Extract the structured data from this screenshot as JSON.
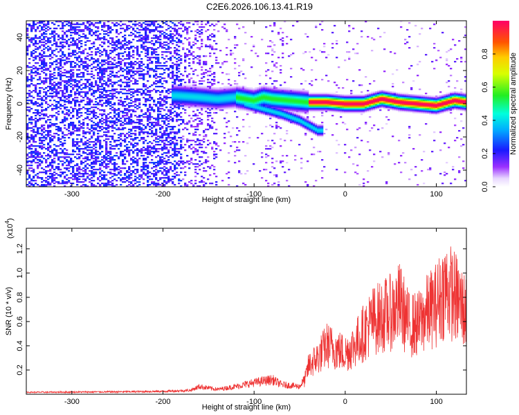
{
  "title": "C2E6.2026.106.13.41.R19",
  "chart_data": [
    {
      "type": "heatmap",
      "xlabel": "Height of straight line (km)",
      "ylabel": "Frequency (Hz)",
      "xlim": [
        -350,
        133
      ],
      "ylim": [
        -50,
        50
      ],
      "xticks": [
        -300,
        -200,
        -100,
        0,
        100
      ],
      "yticks": [
        -40,
        -20,
        0,
        20,
        40
      ],
      "colorbar": {
        "label": "Normalized spectral amplitude",
        "range": [
          0,
          1
        ],
        "ticks": [
          "0.0",
          "0.2",
          "0.4",
          "0.6",
          "0.8"
        ],
        "tick_values": [
          0.0,
          0.2,
          0.4,
          0.6,
          0.8
        ]
      },
      "features": {
        "noise_region_x": [
          -350,
          -180
        ],
        "mid_noise_x": [
          -180,
          -140
        ],
        "ridge_center": [
          [
            -185,
            5
          ],
          [
            -160,
            4
          ],
          [
            -140,
            3
          ],
          [
            -120,
            4
          ],
          [
            -110,
            3
          ],
          [
            -100,
            2
          ],
          [
            -90,
            4
          ],
          [
            -80,
            3
          ],
          [
            -60,
            2
          ],
          [
            -40,
            1
          ],
          [
            -20,
            1
          ],
          [
            0,
            0
          ],
          [
            20,
            0
          ],
          [
            40,
            3
          ],
          [
            60,
            1
          ],
          [
            80,
            0
          ],
          [
            100,
            -1
          ],
          [
            120,
            2
          ],
          [
            133,
            1
          ]
        ],
        "branch": [
          [
            -110,
            0
          ],
          [
            -90,
            -3
          ],
          [
            -70,
            -6
          ],
          [
            -50,
            -10
          ],
          [
            -30,
            -16
          ]
        ]
      }
    },
    {
      "type": "line",
      "xlabel": "Height of straight line (km)",
      "ylabel": "SNR (10 * v/v)",
      "y_multiplier": "(x10",
      "y_multiplier_exp": "4",
      "y_multiplier_close": ")",
      "xlim": [
        -350,
        133
      ],
      "ylim": [
        0,
        1.37
      ],
      "xticks": [
        -300,
        -200,
        -100,
        0,
        100
      ],
      "yticks": [
        0.2,
        0.4,
        0.6,
        0.8,
        1.0,
        1.2
      ],
      "ytick_labels": [
        "0.2",
        "0.4",
        "0.6",
        "0.8",
        "1.0",
        "1.2"
      ],
      "series": [
        {
          "name": "SNR",
          "color": "#ee3333",
          "envelope": [
            [
              -350,
              0.02
            ],
            [
              -250,
              0.025
            ],
            [
              -200,
              0.03
            ],
            [
              -170,
              0.04
            ],
            [
              -160,
              0.08
            ],
            [
              -140,
              0.05
            ],
            [
              -120,
              0.08
            ],
            [
              -100,
              0.12
            ],
            [
              -80,
              0.15
            ],
            [
              -70,
              0.1
            ],
            [
              -50,
              0.08
            ],
            [
              -45,
              0.15
            ],
            [
              -40,
              0.35
            ],
            [
              -30,
              0.45
            ],
            [
              -20,
              0.6
            ],
            [
              -10,
              0.55
            ],
            [
              0,
              0.5
            ],
            [
              10,
              0.6
            ],
            [
              20,
              0.75
            ],
            [
              30,
              0.9
            ],
            [
              40,
              0.95
            ],
            [
              50,
              1.0
            ],
            [
              60,
              1.1
            ],
            [
              70,
              0.85
            ],
            [
              80,
              0.85
            ],
            [
              90,
              1.0
            ],
            [
              100,
              1.1
            ],
            [
              110,
              1.3
            ],
            [
              120,
              1.2
            ],
            [
              133,
              1.0
            ]
          ]
        }
      ]
    }
  ]
}
